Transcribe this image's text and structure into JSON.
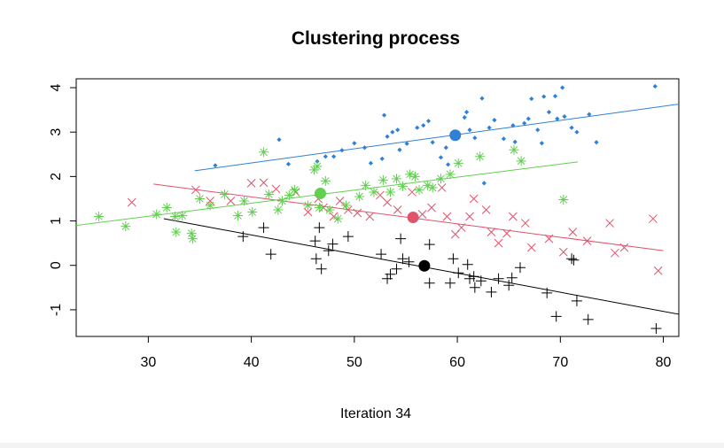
{
  "chart_data": {
    "type": "scatter",
    "title": "Clustering process",
    "xlabel": "Iteration 34",
    "ylabel": "",
    "xlim": [
      23,
      81.5
    ],
    "ylim": [
      -1.6,
      4.2
    ],
    "xticks": [
      30,
      40,
      50,
      60,
      70,
      80
    ],
    "yticks": [
      -1,
      0,
      1,
      2,
      3,
      4
    ],
    "grid": false,
    "legend": "none",
    "series": [
      {
        "color": "#2f80d6",
        "marker": "diamond",
        "centroid": [
          59.8,
          2.93
        ],
        "fit_line": [
          [
            34.5,
            2.13
          ],
          [
            81.5,
            3.63
          ]
        ],
        "points": [
          [
            36.5,
            2.25
          ],
          [
            42.7,
            2.83
          ],
          [
            43.6,
            2.28
          ],
          [
            46.4,
            2.34
          ],
          [
            47.2,
            2.45
          ],
          [
            48,
            2.45
          ],
          [
            48.8,
            2.59
          ],
          [
            50,
            2.75
          ],
          [
            51,
            2.65
          ],
          [
            51.6,
            2.3
          ],
          [
            52.7,
            2.4
          ],
          [
            52.9,
            3.38
          ],
          [
            53.2,
            2.9
          ],
          [
            53.7,
            3.0
          ],
          [
            54.2,
            3.05
          ],
          [
            54.4,
            2.6
          ],
          [
            55.1,
            2.74
          ],
          [
            56.1,
            3.1
          ],
          [
            56.7,
            3.15
          ],
          [
            57.2,
            3.25
          ],
          [
            57.6,
            2.77
          ],
          [
            58.4,
            2.43
          ],
          [
            58.9,
            2.65
          ],
          [
            59.1,
            2.27
          ],
          [
            59.6,
            3.0
          ],
          [
            60.7,
            3.33
          ],
          [
            60.9,
            3.45
          ],
          [
            61.2,
            3.05
          ],
          [
            61.7,
            2.87
          ],
          [
            62.4,
            3.76
          ],
          [
            62.6,
            1.85
          ],
          [
            63.1,
            3.1
          ],
          [
            63.6,
            3.27
          ],
          [
            64.5,
            2.85
          ],
          [
            65.6,
            2.78
          ],
          [
            65.4,
            3.15
          ],
          [
            66.5,
            3.2
          ],
          [
            66.9,
            3.3
          ],
          [
            67.2,
            3.75
          ],
          [
            67.8,
            3.05
          ],
          [
            68.2,
            2.75
          ],
          [
            68.4,
            3.8
          ],
          [
            68.9,
            3.45
          ],
          [
            69.5,
            3.81
          ],
          [
            69.7,
            3.3
          ],
          [
            70.2,
            4.0
          ],
          [
            70.4,
            3.35
          ],
          [
            71.1,
            3.1
          ],
          [
            71.6,
            3.0
          ],
          [
            72.8,
            3.4
          ],
          [
            73.5,
            2.77
          ],
          [
            79.2,
            4.03
          ]
        ]
      },
      {
        "color": "#df536b",
        "marker": "x",
        "centroid": [
          55.7,
          1.08
        ],
        "fit_line": [
          [
            30.5,
            1.83
          ],
          [
            80.0,
            0.33
          ]
        ],
        "points": [
          [
            28.4,
            1.42
          ],
          [
            34.6,
            1.7
          ],
          [
            36,
            1.45
          ],
          [
            38,
            1.45
          ],
          [
            40,
            1.85
          ],
          [
            41.2,
            1.86
          ],
          [
            42.4,
            1.72
          ],
          [
            44.3,
            1.65
          ],
          [
            45.5,
            1.2
          ],
          [
            46.5,
            1.5
          ],
          [
            47,
            1.3
          ],
          [
            48,
            1.1
          ],
          [
            48.6,
            1.45
          ],
          [
            49.4,
            1.25
          ],
          [
            50.3,
            1.18
          ],
          [
            51.5,
            1.1
          ],
          [
            52.5,
            1.58
          ],
          [
            53.2,
            1.42
          ],
          [
            54.2,
            1.25
          ],
          [
            55.6,
            1.65
          ],
          [
            56.6,
            1.15
          ],
          [
            57.5,
            1.3
          ],
          [
            58.5,
            1.75
          ],
          [
            59,
            1.1
          ],
          [
            59.8,
            0.7
          ],
          [
            60.4,
            0.85
          ],
          [
            61.2,
            1.1
          ],
          [
            61.6,
            1.5
          ],
          [
            62.8,
            1.25
          ],
          [
            63.3,
            0.75
          ],
          [
            64,
            0.5
          ],
          [
            64.8,
            0.72
          ],
          [
            65.4,
            1.1
          ],
          [
            66.6,
            0.95
          ],
          [
            67.2,
            0.4
          ],
          [
            68.9,
            0.6
          ],
          [
            70.3,
            0.3
          ],
          [
            71.2,
            0.75
          ],
          [
            72.6,
            0.55
          ],
          [
            74.8,
            0.95
          ],
          [
            75.3,
            0.28
          ],
          [
            76.2,
            0.4
          ],
          [
            79,
            1.05
          ],
          [
            79.5,
            -0.12
          ]
        ]
      },
      {
        "color": "#61d04f",
        "marker": "asterisk",
        "centroid": [
          46.7,
          1.62
        ],
        "fit_line": [
          [
            23.0,
            0.9
          ],
          [
            71.7,
            2.33
          ]
        ],
        "points": [
          [
            25.2,
            1.1
          ],
          [
            27.8,
            0.88
          ],
          [
            30.8,
            1.15
          ],
          [
            31.8,
            1.3
          ],
          [
            32.6,
            1.1
          ],
          [
            33.3,
            1.12
          ],
          [
            32.7,
            0.75
          ],
          [
            34.2,
            0.72
          ],
          [
            34.3,
            0.6
          ],
          [
            35,
            1.5
          ],
          [
            36,
            1.35
          ],
          [
            37.4,
            1.6
          ],
          [
            38.7,
            1.12
          ],
          [
            39.3,
            1.45
          ],
          [
            40.1,
            1.2
          ],
          [
            41.2,
            2.55
          ],
          [
            41.7,
            1.6
          ],
          [
            42.6,
            1.25
          ],
          [
            43,
            1.45
          ],
          [
            43.7,
            1.58
          ],
          [
            44.2,
            1.7
          ],
          [
            45.5,
            1.35
          ],
          [
            46.1,
            2.15
          ],
          [
            46.4,
            2.23
          ],
          [
            46.6,
            1.3
          ],
          [
            47.2,
            1.9
          ],
          [
            47.6,
            1.25
          ],
          [
            48.4,
            1.05
          ],
          [
            49.2,
            1.35
          ],
          [
            50.5,
            1.55
          ],
          [
            51.1,
            1.8
          ],
          [
            51.9,
            1.65
          ],
          [
            52.8,
            1.92
          ],
          [
            53.5,
            1.65
          ],
          [
            54.1,
            1.95
          ],
          [
            54.7,
            1.78
          ],
          [
            55.4,
            2.05
          ],
          [
            55.9,
            2.0
          ],
          [
            56.3,
            1.7
          ],
          [
            57.1,
            1.8
          ],
          [
            57.6,
            1.75
          ],
          [
            58.4,
            1.95
          ],
          [
            59.3,
            2.05
          ],
          [
            60.1,
            2.3
          ],
          [
            62.2,
            2.45
          ],
          [
            65.5,
            2.6
          ],
          [
            66.2,
            2.35
          ],
          [
            70.3,
            1.48
          ]
        ]
      },
      {
        "color": "#000000",
        "marker": "plus",
        "centroid": [
          56.8,
          -0.01
        ],
        "fit_line": [
          [
            31.5,
            1.05
          ],
          [
            81.5,
            -1.1
          ]
        ],
        "points": [
          [
            39.2,
            0.65
          ],
          [
            41.2,
            0.85
          ],
          [
            41.9,
            0.25
          ],
          [
            46.2,
            0.55
          ],
          [
            46.3,
            0.15
          ],
          [
            46.6,
            0.85
          ],
          [
            46.8,
            -0.08
          ],
          [
            47.5,
            0.33
          ],
          [
            47.9,
            0.48
          ],
          [
            49.4,
            0.65
          ],
          [
            52.6,
            0.25
          ],
          [
            53.2,
            -0.3
          ],
          [
            53.5,
            -0.2
          ],
          [
            54.1,
            -0.08
          ],
          [
            54.5,
            0.6
          ],
          [
            54.7,
            0.15
          ],
          [
            55.3,
            0.08
          ],
          [
            57.3,
            0.47
          ],
          [
            57.3,
            -0.4
          ],
          [
            59.3,
            -0.4
          ],
          [
            59.6,
            0.15
          ],
          [
            60.1,
            -0.17
          ],
          [
            61,
            0.02
          ],
          [
            61.2,
            -0.3
          ],
          [
            61.6,
            -0.25
          ],
          [
            61.7,
            -0.5
          ],
          [
            62.3,
            -0.35
          ],
          [
            63.3,
            -0.6
          ],
          [
            64,
            -0.3
          ],
          [
            65,
            -0.45
          ],
          [
            65.3,
            -0.28
          ],
          [
            66.1,
            -0.05
          ],
          [
            68.7,
            -0.62
          ],
          [
            69.6,
            -1.15
          ],
          [
            71.1,
            0.15
          ],
          [
            71.3,
            0.12
          ],
          [
            71.6,
            -0.8
          ],
          [
            72.7,
            -1.22
          ],
          [
            79.3,
            -1.42
          ]
        ]
      }
    ]
  }
}
